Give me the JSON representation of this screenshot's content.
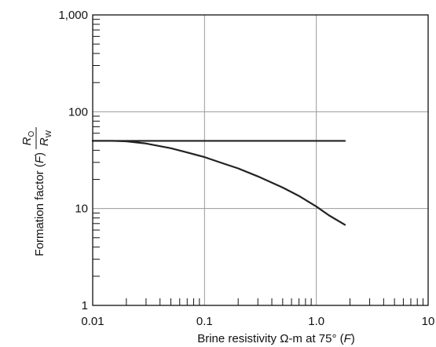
{
  "chart_data": {
    "type": "line",
    "x_scale": "log",
    "y_scale": "log",
    "xlim": [
      0.01,
      10
    ],
    "ylim": [
      1,
      1000
    ],
    "grid": true,
    "xlabel": "Brine resistivity Ω-m at 75° (F)",
    "xlabel_parts": {
      "main": "Brine resistivity Ω-m at 75° (",
      "italic": "F",
      "close": ")"
    },
    "ylabel": "Formation factor (F) Ro/Rw",
    "ylabel_parts": {
      "main": "Formation factor (",
      "italic": "F",
      "close": ")",
      "num_main": "R",
      "num_sub": "O",
      "den_main": "R",
      "den_sub": "W"
    },
    "x_ticks": [
      {
        "value": 0.01,
        "label": "0.01"
      },
      {
        "value": 0.1,
        "label": "0.1"
      },
      {
        "value": 1,
        "label": "1.0"
      },
      {
        "value": 10,
        "label": "10"
      }
    ],
    "y_ticks": [
      {
        "value": 1,
        "label": "1"
      },
      {
        "value": 10,
        "label": "10"
      },
      {
        "value": 100,
        "label": "100"
      },
      {
        "value": 1000,
        "label": "1,000"
      }
    ],
    "series": [
      {
        "x": [
          0.01,
          0.02,
          0.05,
          0.1,
          0.2,
          0.5,
          1.0,
          1.8
        ],
        "y": [
          50,
          50,
          50,
          50,
          50,
          50,
          50,
          50
        ]
      },
      {
        "x": [
          0.01,
          0.015,
          0.02,
          0.03,
          0.05,
          0.07,
          0.1,
          0.15,
          0.2,
          0.3,
          0.5,
          0.7,
          1.0,
          1.3,
          1.8
        ],
        "y": [
          50,
          50,
          49.5,
          47,
          42,
          38,
          34,
          29,
          26,
          21.5,
          16.5,
          13.5,
          10.5,
          8.5,
          6.8
        ]
      }
    ],
    "line_color": "#222222",
    "grid_color": "#9a9a9a"
  }
}
